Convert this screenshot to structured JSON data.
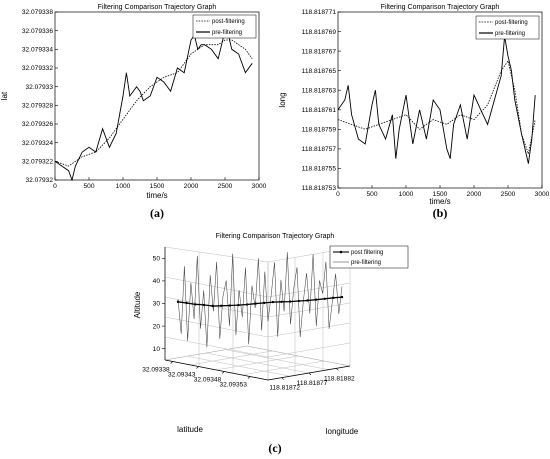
{
  "chart_data": [
    {
      "type": "line",
      "panel_label": "(a)",
      "title": "Filtering Comparison Trajectory Graph",
      "xlabel": "time/s",
      "ylabel": "lat",
      "xlim": [
        0,
        3000
      ],
      "ylim": [
        32.07932,
        32.079338
      ],
      "xticks": [
        "0",
        "500",
        "1000",
        "1500",
        "2000",
        "2500",
        "3000"
      ],
      "yticks": [
        "32.07932",
        "32.079322",
        "32.079324",
        "32.079326",
        "32.079328",
        "32.07933",
        "32.079332",
        "32.079334",
        "32.079336",
        "32.079338"
      ],
      "legend": {
        "position": "top-right",
        "entries": [
          "post-filtering",
          "pre-filtering"
        ]
      },
      "series": [
        {
          "name": "post-filtering",
          "style": "dotted",
          "x": [
            0,
            200,
            400,
            600,
            800,
            1000,
            1200,
            1400,
            1600,
            1800,
            2000,
            2100,
            2200,
            2400,
            2500,
            2600,
            2700,
            2800,
            2900
          ],
          "y": [
            32.079322,
            32.0793215,
            32.0793225,
            32.079323,
            32.0793245,
            32.0793265,
            32.0793285,
            32.07933,
            32.079331,
            32.0793315,
            32.0793335,
            32.079334,
            32.0793345,
            32.0793345,
            32.079335,
            32.079335,
            32.0793345,
            32.079334,
            32.079333
          ]
        },
        {
          "name": "pre-filtering",
          "style": "solid",
          "x": [
            0,
            100,
            200,
            250,
            300,
            400,
            500,
            600,
            700,
            800,
            900,
            1000,
            1050,
            1100,
            1200,
            1250,
            1300,
            1400,
            1500,
            1600,
            1700,
            1800,
            1900,
            2000,
            2050,
            2100,
            2150,
            2200,
            2300,
            2400,
            2500,
            2550,
            2600,
            2700,
            2800,
            2900
          ],
          "y": [
            32.079322,
            32.0793215,
            32.079321,
            32.07932,
            32.0793215,
            32.079323,
            32.0793235,
            32.079323,
            32.0793255,
            32.0793235,
            32.079325,
            32.079329,
            32.0793315,
            32.079329,
            32.07933,
            32.0793295,
            32.0793285,
            32.079329,
            32.079331,
            32.0793305,
            32.0793295,
            32.079332,
            32.0793315,
            32.079335,
            32.0793355,
            32.079334,
            32.0793345,
            32.0793345,
            32.079334,
            32.079333,
            32.079336,
            32.0793355,
            32.079334,
            32.0793335,
            32.0793315,
            32.0793325
          ]
        }
      ]
    },
    {
      "type": "line",
      "panel_label": "(b)",
      "title": "Filtering Comparison Trajectory Graph",
      "xlabel": "time/s",
      "ylabel": "long",
      "xlim": [
        0,
        3000
      ],
      "ylim": [
        118.818753,
        118.818771
      ],
      "xticks": [
        "0",
        "500",
        "1000",
        "1500",
        "2000",
        "2500",
        "3000"
      ],
      "yticks": [
        "118.818753",
        "118.818755",
        "118.818757",
        "118.818759",
        "118.818761",
        "118.818763",
        "118.818765",
        "118.818767",
        "118.818769",
        "118.818771"
      ],
      "legend": {
        "position": "top-right",
        "entries": [
          "post-filtering",
          "pre-filtering"
        ]
      },
      "series": [
        {
          "name": "post-filtering",
          "style": "dotted",
          "x": [
            0,
            200,
            400,
            600,
            800,
            1000,
            1200,
            1400,
            1600,
            1800,
            2000,
            2200,
            2400,
            2500,
            2600,
            2700,
            2800,
            2900
          ],
          "y": [
            118.81876,
            118.8187595,
            118.818759,
            118.8187595,
            118.81876,
            118.8187605,
            118.818759,
            118.81876,
            118.8187595,
            118.8187605,
            118.81876,
            118.8187615,
            118.818765,
            118.818766,
            118.818763,
            118.8187585,
            118.8187565,
            118.81876
          ]
        },
        {
          "name": "pre-filtering",
          "style": "solid",
          "x": [
            0,
            100,
            150,
            200,
            300,
            400,
            500,
            550,
            600,
            700,
            800,
            850,
            900,
            1000,
            1100,
            1200,
            1300,
            1400,
            1500,
            1600,
            1650,
            1700,
            1800,
            1900,
            2000,
            2100,
            2200,
            2300,
            2400,
            2450,
            2500,
            2550,
            2600,
            2700,
            2750,
            2800,
            2850,
            2900
          ],
          "y": [
            118.818761,
            118.818762,
            118.8187635,
            118.8187605,
            118.818758,
            118.8187575,
            118.8187615,
            118.818763,
            118.8187595,
            118.818758,
            118.8187605,
            118.818756,
            118.818759,
            118.8187625,
            118.8187575,
            118.818761,
            118.818758,
            118.818762,
            118.818761,
            118.818757,
            118.818756,
            118.8187595,
            118.8187615,
            118.818758,
            118.8187625,
            118.818761,
            118.8187595,
            118.818762,
            118.8187645,
            118.8187685,
            118.8187665,
            118.818765,
            118.818762,
            118.8187585,
            118.818757,
            118.8187555,
            118.818758,
            118.8187625
          ]
        }
      ]
    },
    {
      "type": "line3d",
      "panel_label": "(c)",
      "title": "Filtering Comparison Trajectory Graph",
      "xlabel": "longitude",
      "ylabel": "latitude",
      "zlabel": "Altitude",
      "zlim": [
        5,
        55
      ],
      "zticks": [
        "10",
        "20",
        "30",
        "40",
        "50"
      ],
      "latitude_ticks": [
        "32.09338",
        "32.09343",
        "32.09348",
        "32.09353"
      ],
      "longitude_ticks": [
        "118.81872",
        "118.81877",
        "118.81882"
      ],
      "legend": {
        "position": "top-right",
        "entries": [
          "post filtering",
          "pre-filtering"
        ]
      },
      "series": [
        {
          "name": "post filtering",
          "style": "solid-marked",
          "z": [
            29,
            28.8,
            28.5,
            28.6,
            28.4,
            28.7,
            29,
            29.3,
            29.6,
            30,
            30.2,
            30.4,
            30.3,
            30.1,
            30,
            29.8,
            29.7,
            29.6,
            29.5,
            29.3
          ]
        },
        {
          "name": "pre-filtering",
          "style": "solid-thin",
          "z": [
            30,
            15,
            45,
            12,
            38,
            22,
            50,
            18,
            35,
            10,
            42,
            26,
            48,
            14,
            33,
            40,
            20,
            52,
            16,
            36,
            24,
            46,
            12,
            38,
            28,
            50,
            18,
            44,
            22,
            34,
            48,
            15,
            40,
            26,
            52,
            20,
            36,
            45,
            14,
            30,
            42,
            24,
            50,
            18,
            38,
            32,
            46,
            16,
            28,
            40,
            22,
            34
          ]
        }
      ]
    }
  ]
}
